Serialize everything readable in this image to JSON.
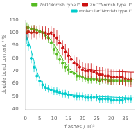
{
  "chart_data": {
    "type": "scatter",
    "xlabel": "flashes / 10³",
    "ylabel": "double bond content / %",
    "xlim": [
      0,
      38
    ],
    "ylim": [
      40,
      110
    ],
    "xticks": [
      0,
      5,
      10,
      15,
      20,
      25,
      30,
      35
    ],
    "yticks": [
      40,
      50,
      60,
      70,
      80,
      90,
      100,
      110
    ],
    "grid": false,
    "legend": "upper right",
    "series": [
      {
        "name": "ZnO\"Norrish type I\"",
        "color": "#55bb22",
        "x": [
          0.5,
          1,
          2,
          3,
          4,
          5,
          6,
          7,
          8,
          9,
          10,
          11,
          12,
          13,
          14,
          15,
          16,
          17,
          18,
          19,
          20,
          21,
          22,
          23,
          24,
          25,
          26,
          27,
          28,
          29,
          30,
          31,
          32,
          33,
          34,
          35,
          36,
          37
        ],
        "values": [
          104,
          104,
          103,
          103,
          102,
          101,
          100,
          98,
          96,
          92,
          87,
          83,
          79,
          76,
          73,
          71,
          69,
          68,
          66,
          66,
          65,
          64,
          63,
          63,
          63,
          63,
          62,
          63,
          63,
          62,
          62,
          62,
          62,
          62,
          62,
          62,
          62,
          62
        ],
        "errors": [
          4,
          3,
          3,
          3,
          3,
          3,
          3,
          3,
          4,
          4,
          4,
          4,
          4,
          4,
          4,
          4,
          4,
          3,
          4,
          3,
          4,
          3,
          3,
          3,
          3,
          3,
          3,
          3,
          3,
          3,
          3,
          3,
          3,
          3,
          3,
          3,
          3,
          3
        ],
        "fit_x": [
          0,
          0.5,
          1,
          2,
          3,
          4,
          5,
          6,
          7,
          8,
          9,
          10,
          11,
          12,
          13,
          14,
          15,
          16,
          17,
          18,
          19,
          20,
          21,
          22,
          23,
          24,
          25,
          26,
          27,
          28,
          29,
          30,
          31,
          32,
          33,
          34,
          35,
          36,
          37,
          38
        ],
        "fit_values": [
          104.0,
          104.0,
          103.8,
          103.4,
          103.0,
          102.4,
          101.5,
          100.3,
          98.7,
          96.7,
          94.1,
          90.9,
          87.3,
          83.3,
          79.4,
          76.0,
          72.8,
          70.4,
          68.4,
          66.8,
          65.7,
          65.0,
          64.5,
          64.1,
          63.8,
          63.7,
          63.6,
          63.5,
          63.4,
          63.3,
          63.2,
          63.2,
          63.1,
          63.1,
          63.0,
          63.0,
          63.0,
          62.9,
          62.9,
          62.9
        ]
      },
      {
        "name": "ZnO\"Norrish type II\"",
        "color": "#cc1111",
        "x": [
          0.5,
          1,
          2,
          3,
          4,
          5,
          6,
          7,
          8,
          9,
          10,
          11,
          12,
          13,
          14,
          15,
          16,
          17,
          18,
          19,
          20,
          21,
          22,
          23,
          24,
          25,
          26,
          27,
          28,
          29,
          30,
          31,
          32,
          33,
          34,
          35,
          36,
          37
        ],
        "values": [
          100,
          101,
          100,
          101,
          100,
          101,
          100,
          100,
          99,
          100,
          98,
          96,
          92,
          88,
          85,
          82,
          79,
          76,
          75,
          73,
          71,
          70,
          70,
          70,
          69,
          68,
          67,
          67,
          66,
          66,
          65,
          65,
          65,
          65,
          65,
          64,
          63,
          63
        ],
        "errors": [
          5,
          5,
          5,
          5,
          5,
          5,
          5,
          5,
          5,
          5,
          6,
          6,
          6,
          6,
          6,
          6,
          6,
          6,
          6,
          6,
          6,
          6,
          6,
          6,
          6,
          6,
          6,
          6,
          6,
          6,
          6,
          6,
          6,
          6,
          6,
          6,
          6,
          6
        ],
        "fit_x": [
          0,
          0.5,
          1,
          2,
          3,
          4,
          5,
          6,
          7,
          8,
          9,
          10,
          11,
          12,
          13,
          14,
          15,
          16,
          17,
          18,
          19,
          20,
          21,
          22,
          23,
          24,
          25,
          26,
          27,
          28,
          29,
          30,
          31,
          32,
          33,
          34,
          35,
          36,
          37,
          38
        ],
        "fit_values": [
          100.5,
          100.5,
          100.4,
          100.3,
          100.2,
          100.1,
          100.0,
          100.0,
          99.9,
          99.6,
          99.0,
          97.8,
          95.9,
          93.2,
          90.0,
          86.7,
          83.4,
          80.4,
          77.8,
          75.7,
          74.0,
          72.7,
          71.8,
          71.2,
          70.8,
          70.5,
          70.3,
          70.1,
          70.0,
          69.9,
          69.8,
          69.7,
          69.6,
          69.5,
          69.4,
          69.3,
          69.2,
          69.1,
          69.0,
          69.0
        ]
      },
      {
        "name": "molecular\"Norrish type I\"",
        "color": "#00cccc",
        "x": [
          0.5,
          1,
          2,
          3,
          4,
          5,
          6,
          7,
          8,
          9,
          10,
          11,
          12,
          13,
          14,
          15,
          16,
          17,
          18,
          19,
          20,
          21,
          22,
          23,
          24,
          25,
          26,
          27,
          28,
          29,
          30,
          31,
          32,
          33,
          34,
          35,
          36,
          37
        ],
        "values": [
          95,
          90,
          80,
          73,
          66,
          62,
          59,
          57,
          56,
          55,
          54,
          54,
          53,
          52,
          52,
          51,
          51,
          50,
          50,
          50,
          50,
          49,
          49,
          49,
          49,
          49,
          48,
          48,
          48,
          48,
          47,
          47,
          47,
          47,
          47,
          48,
          48,
          48
        ],
        "errors": [
          4,
          4,
          4,
          4,
          4,
          4,
          3,
          3,
          3,
          3,
          3,
          3,
          3,
          3,
          3,
          3,
          3,
          3,
          3,
          3,
          3,
          3,
          3,
          3,
          3,
          3,
          3,
          3,
          3,
          3,
          3,
          3,
          3,
          3,
          3,
          3,
          3,
          3
        ],
        "fit_x": [
          0,
          0.5,
          1,
          2,
          3,
          4,
          5,
          6,
          7,
          8,
          9,
          10,
          11,
          12,
          13,
          14,
          15,
          16,
          17,
          18,
          19,
          20,
          21,
          22,
          23,
          24,
          25,
          26,
          27,
          28,
          29,
          30,
          31,
          32,
          33,
          34,
          35,
          36,
          37,
          38
        ],
        "fit_values": [
          98.5,
          96.5,
          93.5,
          86.0,
          77.5,
          69.5,
          63.5,
          59.5,
          57.0,
          55.5,
          54.5,
          53.5,
          53.0,
          52.5,
          52.0,
          51.7,
          51.4,
          51.2,
          51.0,
          50.8,
          50.6,
          50.5,
          50.3,
          50.2,
          50.1,
          50.0,
          49.9,
          49.8,
          49.7,
          49.6,
          49.5,
          49.4,
          49.3,
          49.2,
          49.1,
          49.0,
          48.9,
          48.8,
          48.7,
          48.6
        ]
      }
    ]
  }
}
